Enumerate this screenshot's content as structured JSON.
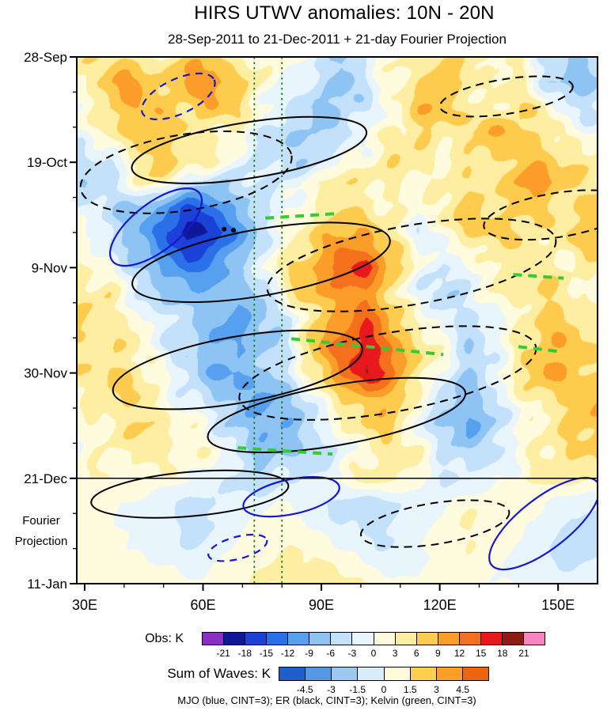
{
  "header": {
    "title": "HIRS UTWV anomalies: 10N - 20N",
    "subtitle": "28-Sep-2011 to 21-Dec-2011 + 21-day Fourier Projection"
  },
  "side_label": {
    "line1": "Fourier",
    "line2": "Projection"
  },
  "footer": {
    "legend": "MJO (blue, CINT=3); ER (black, CINT=3); Kelvin (green, CINT=3)"
  },
  "colorbars": {
    "obs": {
      "label": "Obs: K",
      "ticks": [
        "-21",
        "-18",
        "-15",
        "-12",
        "-9",
        "-6",
        "-3",
        "0",
        "3",
        "6",
        "9",
        "12",
        "15",
        "18",
        "21"
      ]
    },
    "waves": {
      "label": "Sum of Waves: K",
      "ticks": [
        "-4.5",
        "-3",
        "-1.5",
        "0",
        "1.5",
        "3",
        "4.5"
      ]
    }
  },
  "chart_data": {
    "type": "heatmap",
    "title": "HIRS UTWV anomalies: 10N - 20N",
    "subtitle": "28-Sep-2011 to 21-Dec-2011 + 21-day Fourier Projection",
    "x_axis": {
      "range": [
        28,
        160
      ],
      "major": [
        30,
        60,
        90,
        120,
        150
      ],
      "major_labels": [
        "30E",
        "60E",
        "90E",
        "120E",
        "150E"
      ],
      "minor": [
        40,
        50,
        70,
        80,
        100,
        110,
        130,
        140
      ]
    },
    "y_axis": {
      "total_days": 105,
      "major_days": [
        0,
        21,
        42,
        63,
        84,
        105
      ],
      "major_labels": [
        "28-Sep",
        "19-Oct",
        "9-Nov",
        "30-Nov",
        "21-Dec",
        "11-Jan"
      ],
      "minor_days": [
        7,
        14,
        28,
        35,
        49,
        56,
        70,
        77,
        91,
        98
      ]
    },
    "levels": [
      -21,
      -18,
      -15,
      -12,
      -9,
      -6,
      -3,
      0,
      3,
      6,
      9,
      12,
      15,
      18,
      21
    ],
    "fill_colors": [
      "#8b30c4",
      "#10189a",
      "#1c41d9",
      "#2a70e8",
      "#56a0ef",
      "#8ec4f4",
      "#c3e1fa",
      "#e9f5fd",
      "#fffbdf",
      "#feeea2",
      "#fdcc4f",
      "#fb9d28",
      "#f4701d",
      "#e8191c",
      "#8f1d15",
      "#f983c3"
    ],
    "wave_levels": [
      -4.5,
      -3,
      -1.5,
      0,
      1.5,
      3,
      4.5
    ],
    "wave_colors": [
      "#1e5fcc",
      "#5598e6",
      "#9cc9f0",
      "#d9ecfa",
      "#fffbda",
      "#fdcf4e",
      "#fb9d28",
      "#ec660f"
    ],
    "projection_start_day": 84,
    "reference_lons": [
      73,
      80
    ],
    "contour_colors": {
      "mjo": "#1717d1",
      "er": "#000000",
      "kelvin": "#33cc33",
      "reference": "#1d7a1d"
    },
    "grid": {
      "lons": [
        30,
        36.5,
        43,
        49.5,
        56,
        62.5,
        69,
        75.5,
        82,
        88.5,
        95,
        101.5,
        108,
        114.5,
        121,
        127.5,
        134,
        140.5,
        147,
        153.5,
        160
      ],
      "days": [
        0,
        5,
        10,
        15,
        21,
        25,
        30,
        35,
        42,
        47,
        52,
        58,
        63,
        68,
        73,
        78,
        84,
        89,
        94,
        100,
        105
      ],
      "values": [
        [
          4,
          6,
          5,
          3,
          6,
          8,
          4,
          2,
          1,
          -2,
          -6,
          -3,
          2,
          5,
          7,
          5,
          2,
          5,
          -3,
          -8,
          -4
        ],
        [
          3,
          8,
          9,
          6,
          10,
          12,
          8,
          3,
          -1,
          -5,
          -8,
          -4,
          3,
          6,
          9,
          6,
          1,
          3,
          -5,
          -9,
          -5
        ],
        [
          2,
          6,
          10,
          8,
          7,
          9,
          5,
          1,
          -3,
          -7,
          -6,
          -2,
          2,
          7,
          8,
          4,
          2,
          6,
          4,
          -2,
          -4
        ],
        [
          1,
          3,
          7,
          9,
          6,
          4,
          2,
          -2,
          -6,
          -8,
          -4,
          1,
          4,
          6,
          5,
          7,
          8,
          7,
          5,
          2,
          0
        ],
        [
          -4,
          -2,
          4,
          8,
          5,
          2,
          -2,
          -4,
          -5,
          -3,
          0,
          3,
          5,
          3,
          2,
          5,
          6,
          8,
          9,
          6,
          3
        ],
        [
          -5,
          -3,
          2,
          4,
          -2,
          -6,
          -5,
          -3,
          -1,
          2,
          4,
          5,
          3,
          1,
          3,
          6,
          5,
          9,
          10,
          7,
          4
        ],
        [
          -2,
          -4,
          -6,
          -10,
          -16,
          -14,
          -8,
          -4,
          0,
          4,
          6,
          5,
          2,
          0,
          4,
          7,
          6,
          8,
          7,
          5,
          6
        ],
        [
          0,
          -3,
          -8,
          -14,
          -20,
          -18,
          -10,
          -5,
          2,
          7,
          10,
          8,
          4,
          -2,
          2,
          6,
          8,
          6,
          4,
          6,
          8
        ],
        [
          2,
          1,
          -5,
          -10,
          -14,
          -12,
          -6,
          -2,
          6,
          10,
          14,
          16,
          8,
          2,
          -4,
          -2,
          4,
          6,
          3,
          2,
          5
        ],
        [
          4,
          3,
          -2,
          -6,
          -8,
          -6,
          -8,
          -6,
          4,
          8,
          12,
          10,
          6,
          -2,
          -6,
          -3,
          2,
          5,
          6,
          4,
          3
        ],
        [
          5,
          4,
          2,
          -3,
          -6,
          -8,
          -10,
          -8,
          -4,
          6,
          10,
          14,
          8,
          4,
          -3,
          -5,
          -2,
          4,
          7,
          5,
          4
        ],
        [
          6,
          5,
          3,
          -2,
          -5,
          -7,
          -9,
          -6,
          -2,
          8,
          13,
          17,
          12,
          6,
          2,
          -4,
          -3,
          3,
          8,
          9,
          6
        ],
        [
          5,
          6,
          4,
          1,
          -4,
          -8,
          -10,
          -7,
          -3,
          4,
          12,
          18,
          14,
          5,
          -2,
          -6,
          -3,
          5,
          9,
          8,
          7
        ],
        [
          4,
          5,
          6,
          3,
          -2,
          -5,
          -8,
          -9,
          -6,
          -2,
          6,
          10,
          8,
          3,
          -4,
          -7,
          -4,
          2,
          6,
          7,
          8
        ],
        [
          3,
          4,
          5,
          4,
          2,
          -3,
          -6,
          -8,
          -7,
          -4,
          2,
          7,
          6,
          -2,
          -6,
          -9,
          -5,
          -1,
          4,
          6,
          7
        ],
        [
          2,
          3,
          4,
          5,
          3,
          1,
          -4,
          -7,
          -6,
          -5,
          -2,
          4,
          5,
          2,
          -3,
          -6,
          -4,
          1,
          5,
          7,
          6
        ],
        [
          1,
          2,
          3,
          2,
          1,
          -2,
          -4,
          -5,
          -4,
          -2,
          2,
          5,
          4,
          1,
          -3,
          -4,
          -1,
          3,
          5,
          4,
          3
        ],
        [
          1,
          1,
          0,
          -2,
          -4,
          -4,
          -2,
          -1,
          0,
          -2,
          -4,
          -5,
          -4,
          -2,
          0,
          2,
          3,
          2,
          0,
          -2,
          -3
        ],
        [
          2,
          1,
          -1,
          -3,
          -4,
          -3,
          -1,
          1,
          2,
          0,
          -3,
          -4,
          -3,
          -1,
          1,
          3,
          2,
          1,
          -2,
          -4,
          -4
        ],
        [
          2,
          2,
          1,
          -1,
          -2,
          -1,
          1,
          2,
          3,
          4,
          2,
          -1,
          -2,
          -1,
          1,
          2,
          1,
          -1,
          -3,
          -4,
          -3
        ],
        [
          1,
          2,
          2,
          1,
          0,
          1,
          2,
          3,
          4,
          5,
          4,
          2,
          1,
          1,
          2,
          1,
          0,
          -1,
          -2,
          -2,
          -1
        ]
      ]
    },
    "contours": {
      "mjo": [
        {
          "fx": 0.195,
          "fy": 0.075,
          "rx": 0.076,
          "ry": 0.033,
          "rot": -25,
          "dashed": true
        },
        {
          "fx": 0.152,
          "fy": 0.323,
          "rx": 0.106,
          "ry": 0.045,
          "rot": -38,
          "dashed": false
        },
        {
          "fx": 0.412,
          "fy": 0.835,
          "rx": 0.094,
          "ry": 0.033,
          "rot": -12,
          "dashed": false
        },
        {
          "fx": 0.898,
          "fy": 0.886,
          "rx": 0.129,
          "ry": 0.048,
          "rot": -38,
          "dashed": false
        },
        {
          "fx": 0.309,
          "fy": 0.932,
          "rx": 0.058,
          "ry": 0.021,
          "rot": -15,
          "dashed": true
        }
      ],
      "er": [
        {
          "fx": 0.331,
          "fy": 0.177,
          "rx": 0.228,
          "ry": 0.053,
          "rot": -9,
          "dashed": false
        },
        {
          "fx": 0.21,
          "fy": 0.219,
          "rx": 0.205,
          "ry": 0.072,
          "rot": -9,
          "dashed": true
        },
        {
          "fx": 0.825,
          "fy": 0.075,
          "rx": 0.129,
          "ry": 0.033,
          "rot": -9,
          "dashed": true
        },
        {
          "fx": 0.354,
          "fy": 0.39,
          "rx": 0.251,
          "ry": 0.063,
          "rot": -10,
          "dashed": false
        },
        {
          "fx": 0.643,
          "fy": 0.395,
          "rx": 0.281,
          "ry": 0.075,
          "rot": -10,
          "dashed": true
        },
        {
          "fx": 0.924,
          "fy": 0.3,
          "rx": 0.144,
          "ry": 0.042,
          "rot": -9,
          "dashed": true
        },
        {
          "fx": 0.309,
          "fy": 0.594,
          "rx": 0.243,
          "ry": 0.063,
          "rot": -10,
          "dashed": false
        },
        {
          "fx": 0.597,
          "fy": 0.6,
          "rx": 0.289,
          "ry": 0.075,
          "rot": -10,
          "dashed": true
        },
        {
          "fx": 0.499,
          "fy": 0.68,
          "rx": 0.251,
          "ry": 0.057,
          "rot": -10,
          "dashed": false
        },
        {
          "fx": 0.688,
          "fy": 0.886,
          "rx": 0.144,
          "ry": 0.039,
          "rot": -9,
          "dashed": true
        },
        {
          "fx": 0.217,
          "fy": 0.83,
          "rx": 0.19,
          "ry": 0.042,
          "rot": -5,
          "dashed": false
        }
      ],
      "kelvin": [
        {
          "x1": 0.362,
          "y1": 0.306,
          "x2": 0.506,
          "y2": 0.297
        },
        {
          "x1": 0.412,
          "y1": 0.535,
          "x2": 0.704,
          "y2": 0.565
        },
        {
          "x1": 0.309,
          "y1": 0.742,
          "x2": 0.491,
          "y2": 0.754
        },
        {
          "x1": 0.838,
          "y1": 0.413,
          "x2": 0.935,
          "y2": 0.42
        },
        {
          "x1": 0.848,
          "y1": 0.55,
          "x2": 0.926,
          "y2": 0.559
        }
      ],
      "dots": [
        {
          "fx": 0.283,
          "fy": 0.327
        },
        {
          "fx": 0.301,
          "fy": 0.329
        }
      ]
    }
  }
}
